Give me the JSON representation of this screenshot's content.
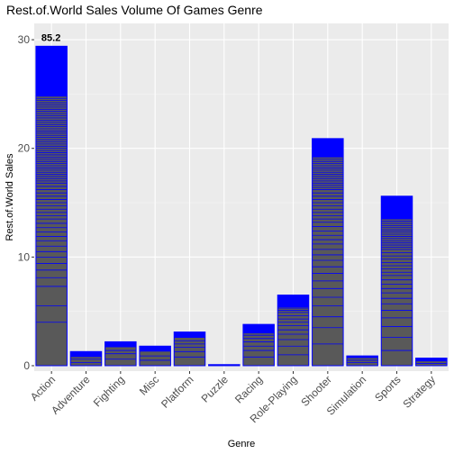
{
  "chart_data": {
    "type": "bar",
    "title": "Rest.of.World Sales Volume Of Games Genre",
    "xlabel": "Genre",
    "ylabel": "Rest.of.World Sales",
    "categories": [
      "Action",
      "Adventure",
      "Fighting",
      "Misc",
      "Platform",
      "Puzzle",
      "Racing",
      "Role-Playing",
      "Shooter",
      "Simulation",
      "Sports",
      "Strategy"
    ],
    "values": [
      29.4,
      1.3,
      2.2,
      1.8,
      3.1,
      0.1,
      3.8,
      6.5,
      20.9,
      0.9,
      15.6,
      0.7
    ],
    "filled_portion": [
      24.8,
      0.8,
      1.7,
      1.3,
      2.6,
      0.05,
      3.0,
      5.4,
      19.2,
      0.7,
      13.5,
      0.4
    ],
    "stacked_segment_values": [
      [
        4.0,
        1.5,
        1.8,
        0.8,
        0.7,
        0.6,
        0.6,
        0.5,
        0.5,
        0.5,
        0.4,
        0.4,
        0.4,
        0.4,
        0.4,
        0.3,
        0.3,
        0.3,
        0.3,
        0.3,
        0.3,
        0.3,
        0.3,
        0.3,
        0.3,
        0.3,
        0.2,
        0.2,
        0.2,
        0.2,
        0.2,
        0.2,
        0.2,
        0.2,
        0.2,
        0.2,
        0.2,
        0.2,
        0.2,
        0.2,
        0.2,
        0.2,
        0.2,
        0.2,
        0.2,
        0.2,
        0.2,
        0.2,
        0.2,
        0.2,
        0.2,
        0.2,
        0.2,
        0.2,
        0.2,
        0.2,
        0.2,
        0.2,
        0.2,
        0.2,
        0.2,
        0.2,
        0.2,
        0.2,
        0.2,
        0.2
      ],
      [
        0.3,
        0.3,
        0.2
      ],
      [
        0.6,
        0.5,
        0.3,
        0.3
      ],
      [
        0.5,
        0.4,
        0.4
      ],
      [
        0.8,
        0.5,
        0.4,
        0.3,
        0.3,
        0.3
      ],
      [
        0.05
      ],
      [
        0.8,
        0.6,
        0.4,
        0.4,
        0.3,
        0.3,
        0.2
      ],
      [
        1.0,
        0.8,
        0.6,
        0.5,
        0.4,
        0.4,
        0.3,
        0.3,
        0.3,
        0.3,
        0.2,
        0.2,
        0.1
      ],
      [
        2.0,
        1.5,
        1.0,
        1.0,
        0.8,
        0.8,
        0.7,
        0.7,
        0.6,
        0.6,
        0.5,
        0.5,
        0.5,
        0.4,
        0.4,
        0.4,
        0.4,
        0.4,
        0.3,
        0.3,
        0.3,
        0.3,
        0.3,
        0.3,
        0.3,
        0.3,
        0.3,
        0.3,
        0.2,
        0.2,
        0.2,
        0.2,
        0.2,
        0.2,
        0.2,
        0.2,
        0.2,
        0.2,
        0.2,
        0.2,
        0.2,
        0.2,
        0.2,
        0.2,
        0.2,
        0.2,
        0.2,
        0.2,
        0.2,
        0.2,
        0.2,
        0.2,
        0.2,
        0.2,
        0.2,
        0.2,
        0.2,
        0.2,
        0.2,
        0.2
      ],
      [
        0.3,
        0.2,
        0.2
      ],
      [
        1.4,
        1.2,
        1.0,
        0.8,
        0.7,
        0.6,
        0.5,
        0.5,
        0.4,
        0.4,
        0.4,
        0.4,
        0.3,
        0.3,
        0.3,
        0.3,
        0.3,
        0.3,
        0.3,
        0.3,
        0.2,
        0.2,
        0.2,
        0.2,
        0.2,
        0.2,
        0.2,
        0.2,
        0.2,
        0.2,
        0.2,
        0.2,
        0.2,
        0.2,
        0.2,
        0.2,
        0.2
      ],
      [
        0.2,
        0.2
      ]
    ],
    "annotation": {
      "category": "Action",
      "text": "85.2"
    },
    "y_ticks": [
      0,
      10,
      20,
      30
    ],
    "ylim": [
      -0.5,
      31.5
    ],
    "grid": true,
    "colors": {
      "panel_bg": "#ebebeb",
      "grid_major": "#ffffff",
      "grid_minor": "#f5f5f5",
      "bar_outline": "#0000ff",
      "bar_fill": "#595959",
      "bar_top": "#0000ff"
    }
  }
}
